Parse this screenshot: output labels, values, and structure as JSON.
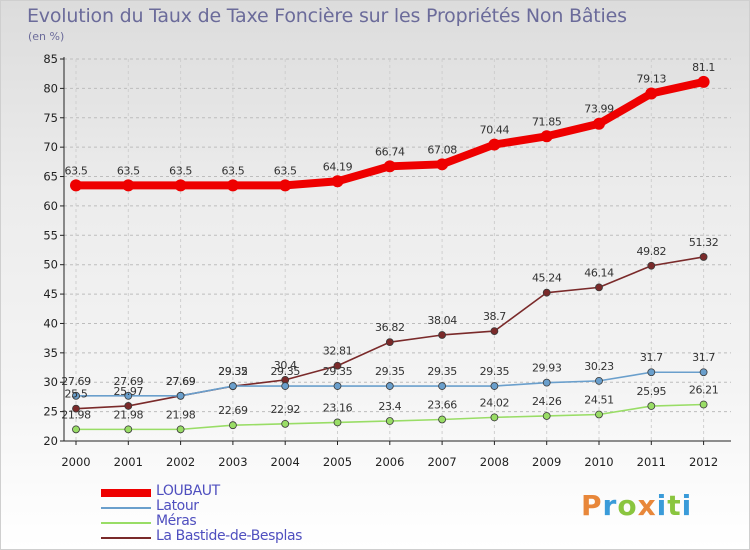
{
  "header": {
    "title": "Evolution du Taux de Taxe Foncière sur les Propriétés Non Bâties",
    "unit": "(en %)"
  },
  "brand": {
    "letters": [
      "P",
      "r",
      "o",
      "x",
      "i",
      "t",
      "i"
    ],
    "colors": [
      "#e8873a",
      "#3a9bd9",
      "#8ac53f",
      "#e8873a",
      "#3a9bd9",
      "#8ac53f",
      "#3a9bd9"
    ]
  },
  "chart_data": {
    "type": "line",
    "x": [
      "2000",
      "2001",
      "2002",
      "2003",
      "2004",
      "2005",
      "2006",
      "2007",
      "2008",
      "2009",
      "2010",
      "2011",
      "2012"
    ],
    "ylim": [
      20,
      85
    ],
    "yticks": [
      20,
      25,
      30,
      35,
      40,
      45,
      50,
      55,
      60,
      65,
      70,
      75,
      80,
      85
    ],
    "grid": "horizontal-dashed",
    "legend_position": "bottom-left",
    "series": [
      {
        "name": "LOUBAUT",
        "color": "#ee0000",
        "values": [
          63.5,
          63.5,
          63.5,
          63.5,
          63.5,
          64.19,
          66.74,
          67.08,
          70.44,
          71.85,
          73.99,
          79.13,
          81.1
        ],
        "labels": [
          "63.5",
          "63.5",
          "63.5",
          "63.5",
          "63.5",
          "64.19",
          "66.74",
          "67.08",
          "70.44",
          "71.85",
          "73.99",
          "79.13",
          "81.1"
        ]
      },
      {
        "name": "Latour",
        "color": "#6a9fcc",
        "values": [
          27.69,
          27.69,
          27.69,
          29.35,
          29.35,
          29.35,
          29.35,
          29.35,
          29.35,
          29.93,
          30.23,
          31.7,
          31.7
        ],
        "labels": [
          "27.69",
          "27.69",
          "27.69",
          "29.35",
          "29.35",
          "29.35",
          "29.35",
          "29.35",
          "29.35",
          "29.93",
          "30.23",
          "31.7",
          "31.7"
        ]
      },
      {
        "name": "Méras",
        "color": "#99dd66",
        "values": [
          21.98,
          21.98,
          21.98,
          22.69,
          22.92,
          23.16,
          23.4,
          23.66,
          24.02,
          24.26,
          24.51,
          25.95,
          26.21
        ],
        "labels": [
          "21.98",
          "21.98",
          "21.98",
          "22.69",
          "22.92",
          "23.16",
          "23.4",
          "23.66",
          "24.02",
          "24.26",
          "24.51",
          "25.95",
          "26.21"
        ]
      },
      {
        "name": "La Bastide-de-Besplas",
        "color": "#7a2a2a",
        "values": [
          25.5,
          25.97,
          27.69,
          29.32,
          30.4,
          32.81,
          36.82,
          38.04,
          38.7,
          45.24,
          46.14,
          49.82,
          51.32
        ],
        "labels": [
          "25.5",
          "25.97",
          "27.69",
          "29.32",
          "30.4",
          "32.81",
          "36.82",
          "38.04",
          "38.7",
          "45.24",
          "46.14",
          "49.82",
          "51.32"
        ]
      }
    ]
  }
}
